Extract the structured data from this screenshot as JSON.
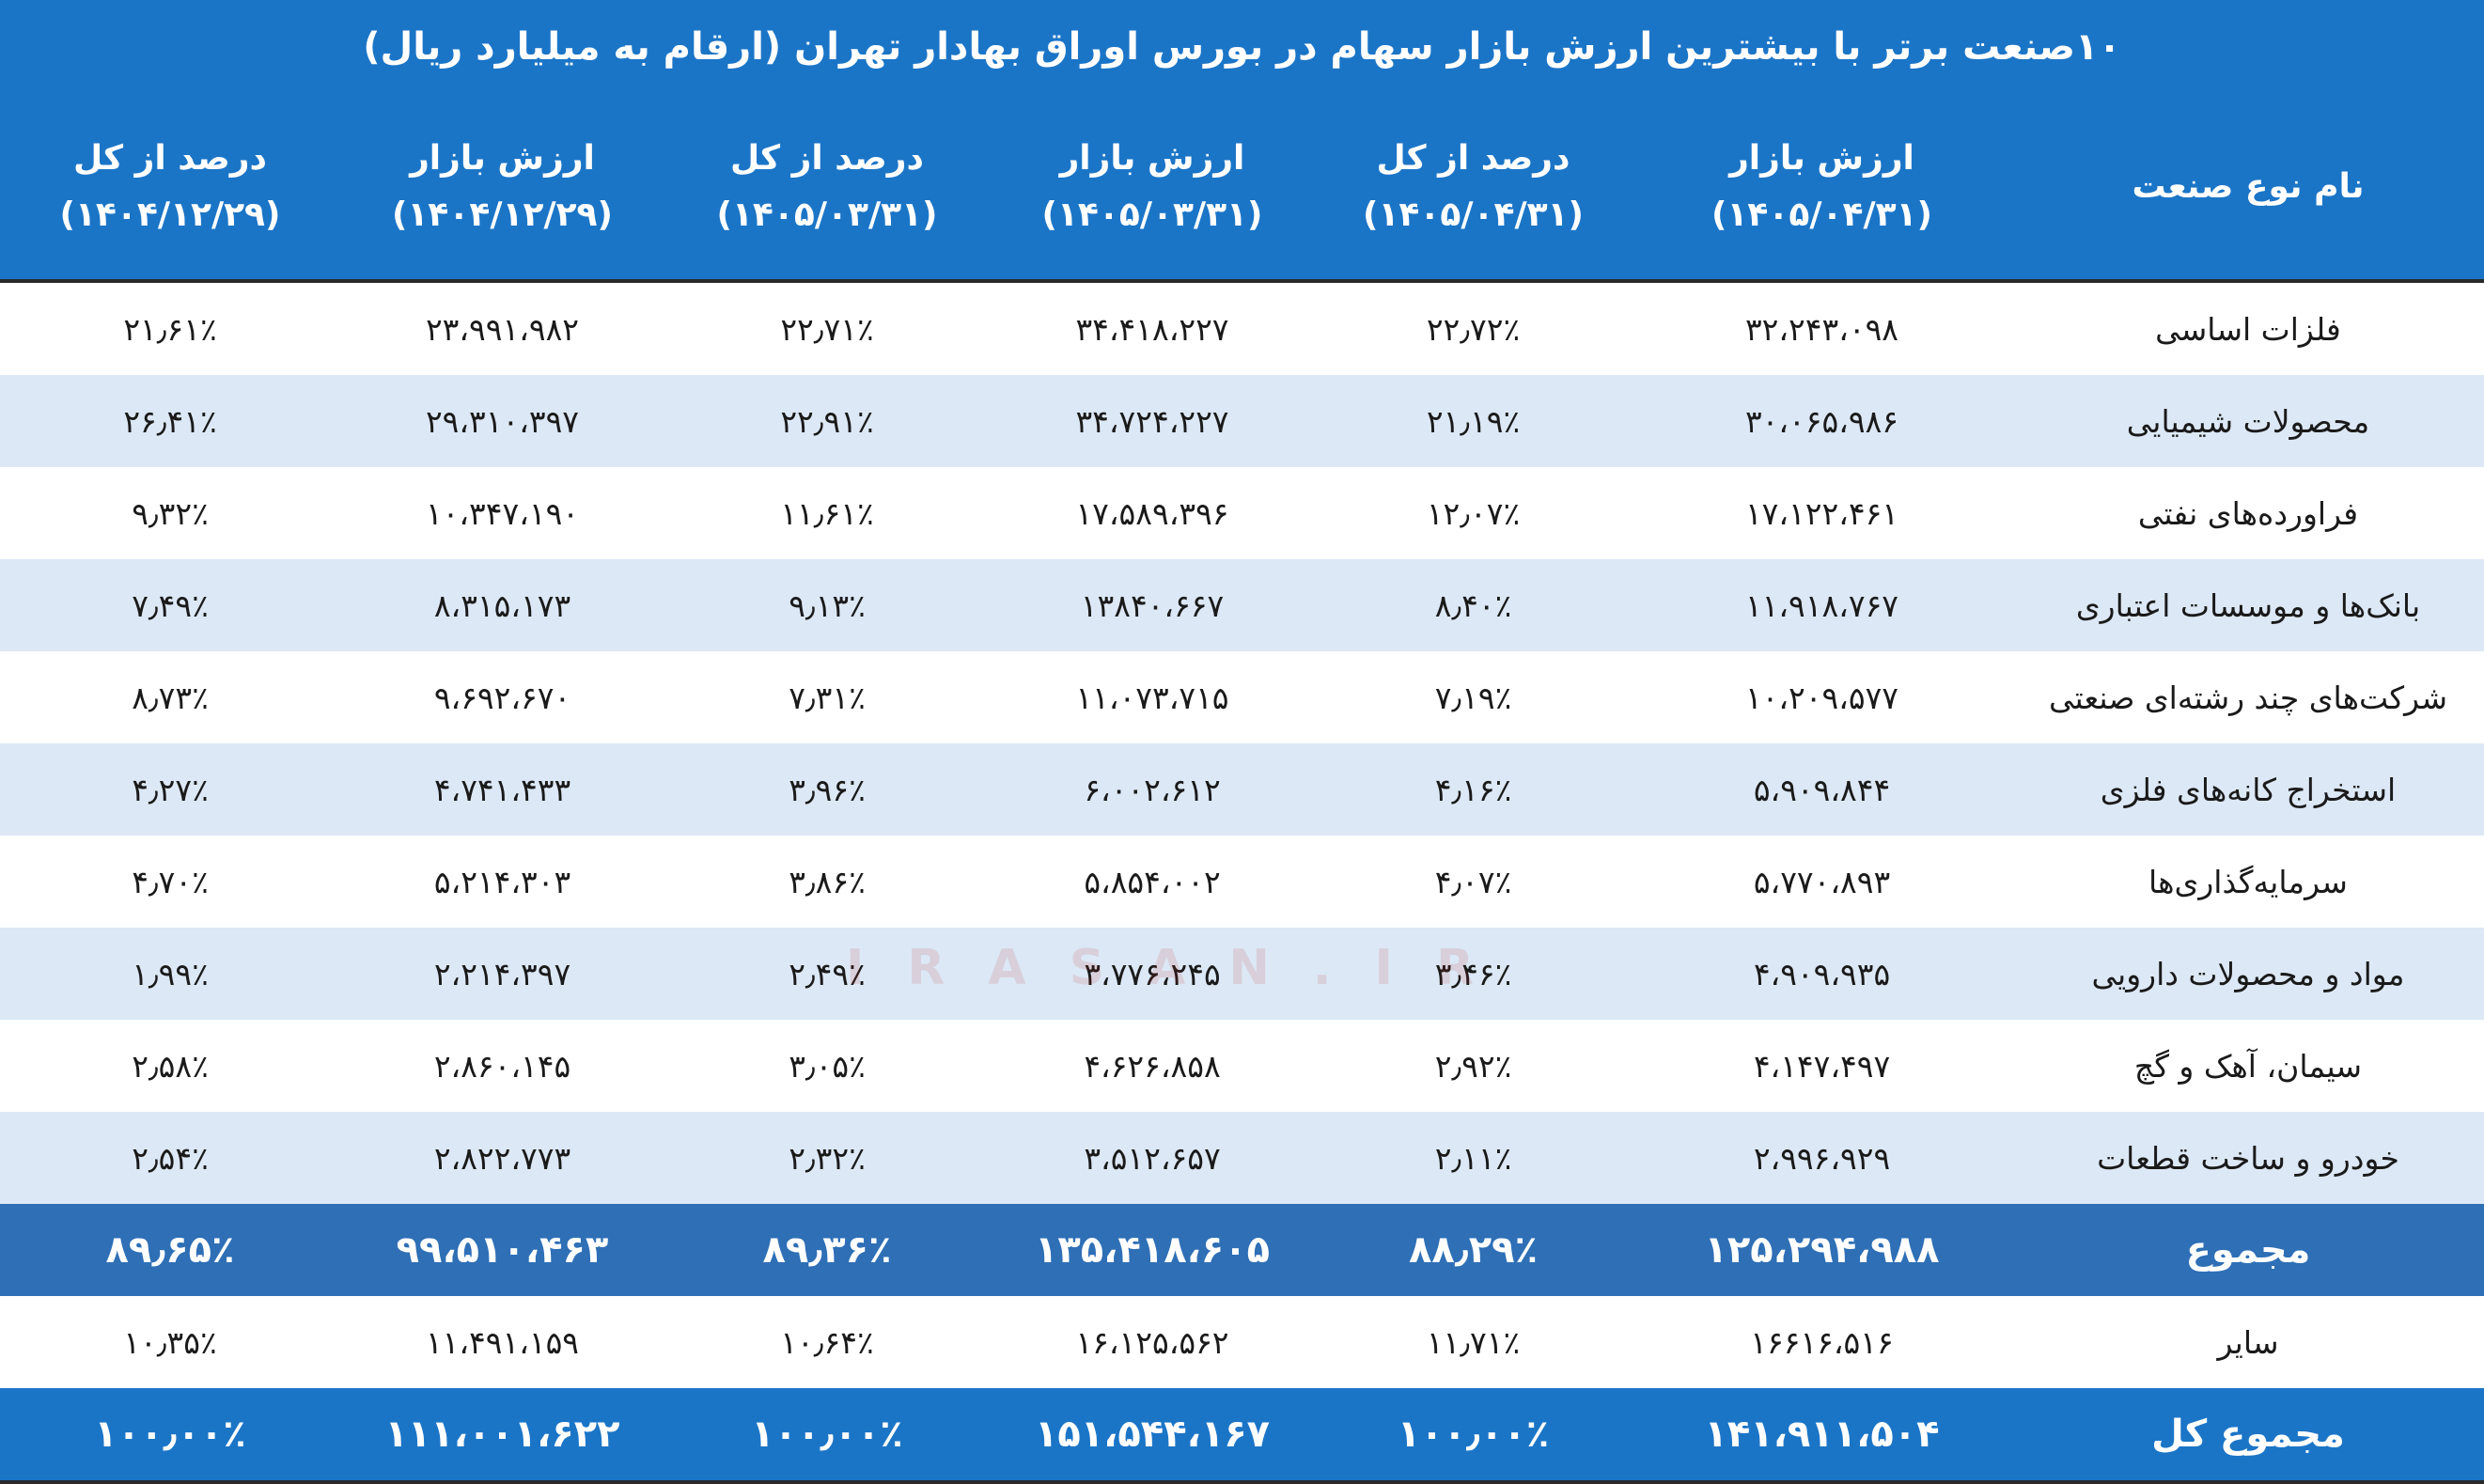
{
  "header": {
    "title": "۱۰صنعت برتر با بیشترین ارزش بازار سهام در بورس اوراق بهادار تهران (ارقام به میلیارد ریال)"
  },
  "watermark": "IRASAN.IR",
  "table": {
    "columns": [
      {
        "label": "نام نوع صنعت"
      },
      {
        "label": "ارزش بازار",
        "date": "(۱۴۰۵/۰۴/۳۱)"
      },
      {
        "label": "درصد از کل",
        "date": "(۱۴۰۵/۰۴/۳۱)"
      },
      {
        "label": "ارزش بازار",
        "date": "(۱۴۰۵/۰۳/۳۱)"
      },
      {
        "label": "درصد از کل",
        "date": "(۱۴۰۵/۰۳/۳۱)"
      },
      {
        "label": "ارزش بازار",
        "date": "(۱۴۰۴/۱۲/۲۹)"
      },
      {
        "label": "درصد از کل",
        "date": "(۱۴۰۴/۱۲/۲۹)"
      }
    ],
    "rows": [
      [
        "فلزات اساسی",
        "۳۲،۲۴۳،۰۹۸",
        "۲۲٫۷۲٪",
        "۳۴،۴۱۸،۲۲۷",
        "۲۲٫۷۱٪",
        "۲۳،۹۹۱،۹۸۲",
        "۲۱٫۶۱٪"
      ],
      [
        "محصولات شیمیایی",
        "۳۰،۰۶۵،۹۸۶",
        "۲۱٫۱۹٪",
        "۳۴،۷۲۴،۲۲۷",
        "۲۲٫۹۱٪",
        "۲۹،۳۱۰،۳۹۷",
        "۲۶٫۴۱٪"
      ],
      [
        "فراورده‌های نفتی",
        "۱۷،۱۲۲،۴۶۱",
        "۱۲٫۰۷٪",
        "۱۷،۵۸۹،۳۹۶",
        "۱۱٫۶۱٪",
        "۱۰،۳۴۷،۱۹۰",
        "۹٫۳۲٪"
      ],
      [
        "بانک‌ها و موسسات اعتباری",
        "۱۱،۹۱۸،۷۶۷",
        "۸٫۴۰٪",
        "۱۳۸۴۰،۶۶۷",
        "۹٫۱۳٪",
        "۸،۳۱۵،۱۷۳",
        "۷٫۴۹٪"
      ],
      [
        "شرکت‌های چند رشته‌ای صنعتی",
        "۱۰،۲۰۹،۵۷۷",
        "۷٫۱۹٪",
        "۱۱،۰۷۳،۷۱۵",
        "۷٫۳۱٪",
        "۹،۶۹۲،۶۷۰",
        "۸٫۷۳٪"
      ],
      [
        "استخراج کانه‌های فلزی",
        "۵،۹۰۹،۸۴۴",
        "۴٫۱۶٪",
        "۶،۰۰۲،۶۱۲",
        "۳٫۹۶٪",
        "۴،۷۴۱،۴۳۳",
        "۴٫۲۷٪"
      ],
      [
        "سرمایه‌گذاری‌ها",
        "۵،۷۷۰،۸۹۳",
        "۴٫۰۷٪",
        "۵،۸۵۴،۰۰۲",
        "۳٫۸۶٪",
        "۵،۲۱۴،۳۰۳",
        "۴٫۷۰٪"
      ],
      [
        "مواد و محصولات دارویی",
        "۴،۹۰۹،۹۳۵",
        "۳٫۴۶٪",
        "۳،۷۷۶،۲۴۵",
        "۲٫۴۹٪",
        "۲،۲۱۴،۳۹۷",
        "۱٫۹۹٪"
      ],
      [
        "سیمان، آهک و گچ",
        "۴،۱۴۷،۴۹۷",
        "۲٫۹۲٪",
        "۴،۶۲۶،۸۵۸",
        "۳٫۰۵٪",
        "۲،۸۶۰،۱۴۵",
        "۲٫۵۸٪"
      ],
      [
        "خودرو و ساخت قطعات",
        "۲،۹۹۶،۹۲۹",
        "۲٫۱۱٪",
        "۳،۵۱۲،۶۵۷",
        "۲٫۳۲٪",
        "۲،۸۲۲،۷۷۳",
        "۲٫۵۴٪"
      ],
      [
        "مجموع",
        "۱۲۵،۲۹۴،۹۸۸",
        "۸۸٫۲۹٪",
        "۱۳۵،۴۱۸،۶۰۵",
        "۸۹٫۳۶٪",
        "۹۹،۵۱۰،۴۶۳",
        "۸۹٫۶۵٪"
      ],
      [
        "سایر",
        "۱۶۶۱۶،۵۱۶",
        "۱۱٫۷۱٪",
        "۱۶،۱۲۵،۵۶۲",
        "۱۰٫۶۴٪",
        "۱۱،۴۹۱،۱۵۹",
        "۱۰٫۳۵٪"
      ],
      [
        "مجموع کل",
        "۱۴۱،۹۱۱،۵۰۴",
        "۱۰۰٫۰۰٪",
        "۱۵۱،۵۴۴،۱۶۷",
        "۱۰۰٫۰۰٪",
        "۱۱۱،۰۰۱،۶۲۲",
        "۱۰۰٫۰۰٪"
      ]
    ]
  }
}
